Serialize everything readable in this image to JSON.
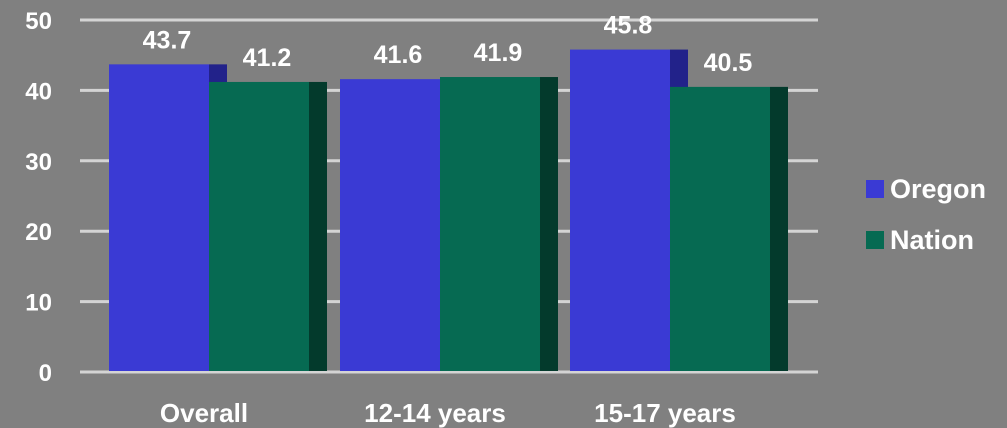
{
  "chart_data": {
    "type": "bar",
    "title": "",
    "xlabel": "",
    "ylabel": "",
    "categories": [
      "Overall",
      "12-14 years",
      "15-17 years"
    ],
    "series": [
      {
        "name": "Oregon",
        "color": "#3a3ad4",
        "side_color": "#22228a",
        "values": [
          43.7,
          41.6,
          45.8
        ]
      },
      {
        "name": "Nation",
        "color": "#066a52",
        "side_color": "#033a2c",
        "values": [
          41.2,
          41.9,
          40.5
        ]
      }
    ],
    "value_labels": [
      [
        "43.7",
        "41.6",
        "45.8"
      ],
      [
        "41.2",
        "41.9",
        "40.5"
      ]
    ],
    "ylim": [
      0,
      50
    ],
    "yticks": [
      0,
      10,
      20,
      30,
      40,
      50
    ],
    "ytick_labels": [
      "0",
      "10",
      "20",
      "30",
      "40",
      "50"
    ],
    "grid": true,
    "legend": "right"
  }
}
